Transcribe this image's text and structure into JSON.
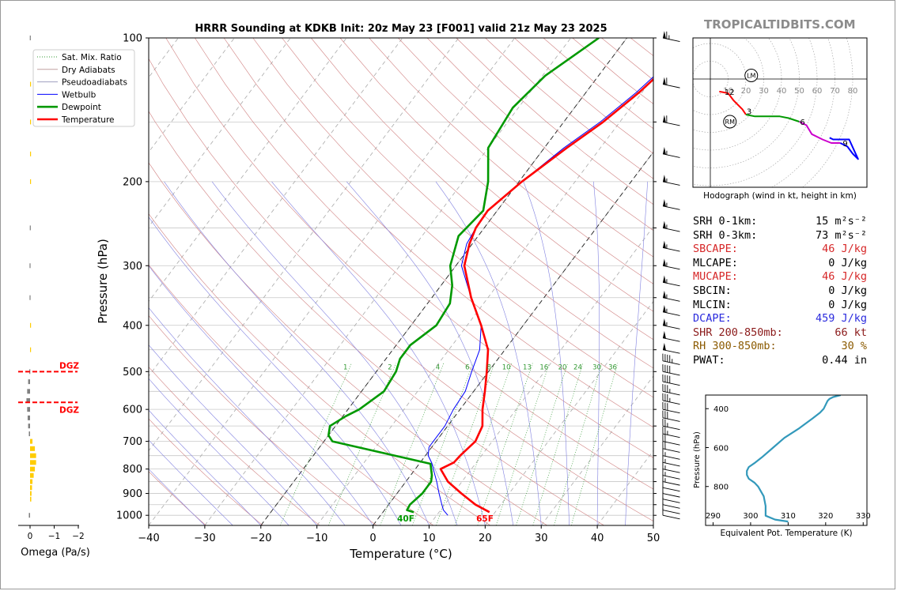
{
  "brand": "TROPICALTIDBITS.COM",
  "chart_data": [
    {
      "type": "line",
      "title": "HRRR Sounding at KDKB Init: 20z May 23 [F001] valid 21z May 23 2025",
      "xlabel": "Temperature (°C)",
      "ylabel": "Pressure (hPa)",
      "xlim": [
        -40,
        50
      ],
      "ylim": [
        1050,
        100
      ],
      "yscale": "log",
      "x_ticks": [
        "−40",
        "−30",
        "−20",
        "−10",
        "0",
        "10",
        "20",
        "30",
        "40",
        "50"
      ],
      "y_ticks": [
        "100",
        "200",
        "300",
        "400",
        "500",
        "600",
        "700",
        "800",
        "900",
        "1000"
      ],
      "legend": {
        "placement": "top-left",
        "entries": [
          "Sat. Mix. Ratio",
          "Dry Adiabats",
          "Pseudoadiabats",
          "Wetbulb",
          "Dewpoint",
          "Temperature"
        ]
      },
      "colors": {
        "temperature": "#ff0000",
        "dewpoint": "#009900",
        "wetbulb": "#0000ff",
        "dry_adiabats": "#d08080",
        "pseudoadiabats": "#8080e0",
        "mixing_ratio": "#339933"
      },
      "mixing_ratio_labels": [
        "1",
        "2",
        "4",
        "6",
        "8",
        "10",
        "13",
        "16",
        "20",
        "24",
        "30",
        "36"
      ],
      "mixing_ratio_values": [
        1,
        2,
        4,
        6,
        8,
        10,
        13,
        16,
        20,
        24,
        30,
        36
      ],
      "series": [
        {
          "key": "temperature",
          "pressure": [
            985,
            950,
            900,
            850,
            800,
            775,
            750,
            700,
            650,
            600,
            550,
            500,
            450,
            400,
            350,
            300,
            270,
            250,
            230,
            200,
            170,
            150,
            130,
            115,
            100
          ],
          "values": [
            19,
            15.5,
            11.5,
            7.5,
            4.5,
            6,
            6.2,
            7,
            6.2,
            4,
            2,
            -0.3,
            -3,
            -7.5,
            -13,
            -18.5,
            -20.5,
            -21.5,
            -21.7,
            -19.5,
            -16,
            -13,
            -10.5,
            -9,
            -7
          ]
        },
        {
          "key": "dewpoint",
          "pressure": [
            985,
            975,
            950,
            900,
            850,
            825,
            780,
            700,
            680,
            650,
            620,
            600,
            550,
            500,
            470,
            440,
            400,
            360,
            330,
            300,
            260,
            230,
            200,
            170,
            140,
            120,
            100
          ],
          "values": [
            5.5,
            4,
            3.8,
            4.5,
            4.5,
            3.8,
            2,
            -18.5,
            -20,
            -21,
            -19.5,
            -18,
            -16,
            -16.5,
            -17.5,
            -17.5,
            -15.5,
            -16,
            -18,
            -21,
            -23.5,
            -22.5,
            -25.5,
            -30,
            -31,
            -29.5,
            -25
          ]
        },
        {
          "key": "wetbulb",
          "pressure": [
            1000,
            975,
            950,
            900,
            850,
            800,
            775,
            750,
            720,
            700,
            650,
            600,
            550,
            500,
            450,
            400,
            350,
            300,
            270,
            250,
            230,
            200,
            170,
            150,
            130,
            115,
            100
          ],
          "values": [
            12,
            10.5,
            9.5,
            7.5,
            5.5,
            3.2,
            2,
            0.5,
            -0.5,
            -0.5,
            -0.5,
            -1.2,
            -1.5,
            -3,
            -4.5,
            -7.5,
            -13,
            -19,
            -21,
            -21.5,
            -21.7,
            -19.5,
            -16.5,
            -13.5,
            -11,
            -9.5,
            -7.5
          ]
        }
      ],
      "annotations": {
        "surface_temp": "65F",
        "surface_dewpoint": "40F"
      }
    },
    {
      "type": "bar",
      "xlabel": "Omega (Pa/s)",
      "xlim": [
        0,
        -2
      ],
      "x_ticks": [
        "0",
        "−1",
        "−2"
      ],
      "dgz_label": "DGZ",
      "dgz_levels": [
        500,
        580
      ],
      "colors": {
        "upward": "#ffcc00",
        "downward": "#808080",
        "dgz": "#ff0000"
      },
      "levels": [
        1000,
        925,
        900,
        875,
        850,
        825,
        800,
        775,
        750,
        725,
        700,
        675,
        650,
        625,
        600,
        575,
        550,
        525,
        500,
        450,
        400,
        350,
        300,
        250,
        200,
        175,
        150,
        125,
        100
      ],
      "values": [
        0.05,
        -0.05,
        -0.06,
        -0.08,
        -0.1,
        -0.15,
        -0.2,
        -0.25,
        -0.25,
        -0.2,
        -0.1,
        0.05,
        0.08,
        0.1,
        0.12,
        0.15,
        0.12,
        0.08,
        0.03,
        -0.03,
        -0.02,
        0.02,
        0.02,
        0.01,
        -0.03,
        -0.02,
        -0.02,
        -0.02,
        0.01
      ]
    },
    {
      "type": "line",
      "xlabel": "",
      "caption": "Hodograph (wind in kt, height in km)",
      "ring_labels": [
        "10",
        "20",
        "30",
        "40",
        "50",
        "60",
        "70",
        "80"
      ],
      "ring_values": [
        10,
        20,
        30,
        40,
        50,
        60,
        70,
        80
      ],
      "storm_markers": [
        {
          "label": "LM",
          "u": 23,
          "v": 2
        },
        {
          "label": "RM",
          "u": 11,
          "v": -24
        }
      ],
      "height_labels": [
        {
          "label": "12",
          "u": 9,
          "v": -7
        },
        {
          "label": "3",
          "u": 20,
          "v": -18
        },
        {
          "label": "6",
          "u": 50,
          "v": -24
        },
        {
          "label": "9",
          "u": 74,
          "v": -36
        }
      ],
      "segments": [
        {
          "color": "#ff0000",
          "points": [
            [
              5,
              -7
            ],
            [
              10,
              -8
            ],
            [
              13,
              -12
            ],
            [
              18,
              -17
            ],
            [
              20,
              -20
            ]
          ]
        },
        {
          "color": "#009900",
          "points": [
            [
              20,
              -20
            ],
            [
              25,
              -21
            ],
            [
              32,
              -21
            ],
            [
              39,
              -21
            ],
            [
              44,
              -22
            ],
            [
              50,
              -24
            ]
          ]
        },
        {
          "color": "#cc00cc",
          "points": [
            [
              50,
              -24
            ],
            [
              54,
              -26
            ],
            [
              57,
              -31
            ],
            [
              63,
              -34
            ],
            [
              68,
              -36
            ],
            [
              73,
              -36
            ]
          ]
        },
        {
          "color": "#0000ff",
          "points": [
            [
              73,
              -36
            ],
            [
              77,
              -38
            ],
            [
              80,
              -42
            ],
            [
              83,
              -45
            ],
            [
              78,
              -34
            ],
            [
              69,
              -34
            ],
            [
              67,
              -33
            ]
          ]
        }
      ]
    },
    {
      "type": "line",
      "xlabel": "Equivalent Pot. Temperature (K)",
      "ylabel": "Pressure (hPa)",
      "xlim": [
        288,
        331
      ],
      "ylim": [
        1000,
        330
      ],
      "x_ticks": [
        "290",
        "300",
        "310",
        "320",
        "330"
      ],
      "y_ticks": [
        "400",
        "600",
        "800"
      ],
      "colors": {
        "line": "#3399bb"
      },
      "series": [
        {
          "pressure": [
            980,
            970,
            950,
            900,
            850,
            800,
            780,
            760,
            740,
            720,
            700,
            680,
            650,
            600,
            550,
            500,
            450,
            420,
            400,
            380,
            360,
            350,
            340,
            330
          ],
          "values": [
            310,
            306.5,
            304,
            304,
            303.5,
            302,
            301,
            299.5,
            299,
            299,
            299.5,
            301,
            303,
            306,
            309,
            313,
            316.5,
            318.5,
            319.5,
            320,
            320.5,
            321,
            322,
            324
          ]
        }
      ]
    }
  ],
  "parameters": [
    {
      "label": "SRH 0-1km:",
      "value": "15",
      "unit": "m²s⁻²",
      "color": "#000000"
    },
    {
      "label": "SRH 0-3km:",
      "value": "73",
      "unit": "m²s⁻²",
      "color": "#000000"
    },
    {
      "label": "SBCAPE:",
      "value": "46 J/kg",
      "color": "#d62728"
    },
    {
      "label": "MLCAPE:",
      "value": "0 J/kg",
      "color": "#000000"
    },
    {
      "label": "MUCAPE:",
      "value": "46 J/kg",
      "color": "#d62728"
    },
    {
      "label": "SBCIN:",
      "value": "0 J/kg",
      "color": "#000000"
    },
    {
      "label": "MLCIN:",
      "value": "0 J/kg",
      "color": "#000000"
    },
    {
      "label": "DCAPE:",
      "value": "459 J/kg",
      "color": "#2b2bdd"
    },
    {
      "label": "SHR 200-850mb:",
      "value": "66 kt",
      "color": "#8b1a1a"
    },
    {
      "label": "RH 300-850mb:",
      "value": "30 %",
      "color": "#8b5a00"
    },
    {
      "label": "PWAT:",
      "value": "0.44 in",
      "color": "#000000"
    }
  ]
}
